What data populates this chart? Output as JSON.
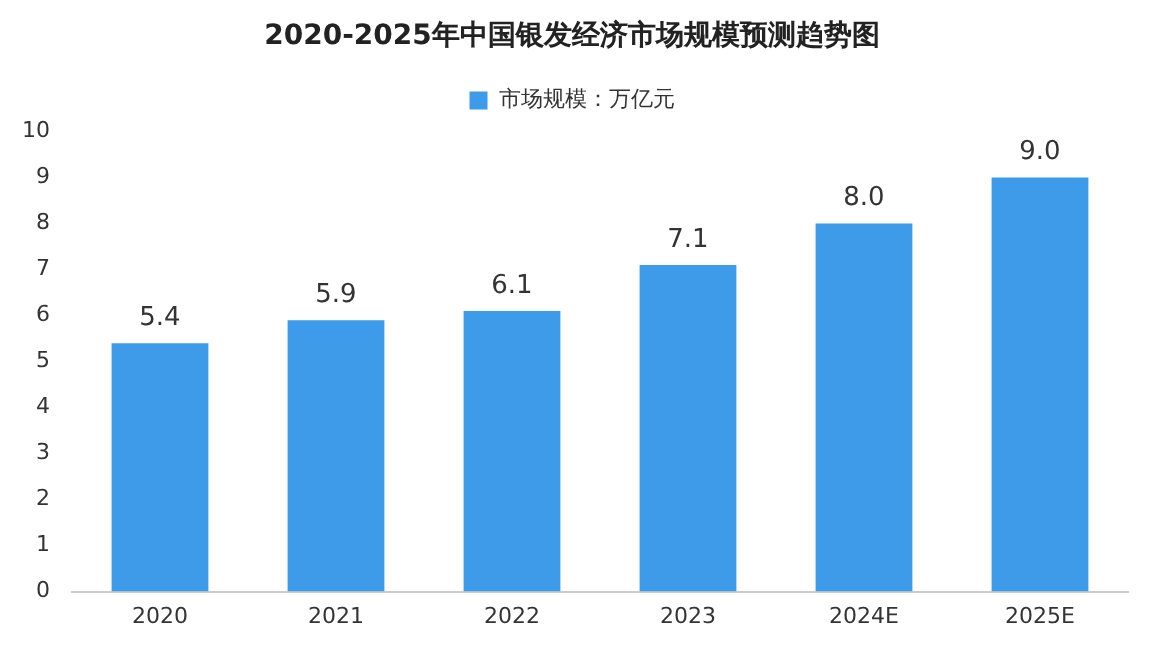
{
  "chart_data": {
    "type": "bar",
    "title": "2020-2025年中国银发经济市场规模预测趋势图",
    "categories": [
      "2020",
      "2021",
      "2022",
      "2023",
      "2024E",
      "2025E"
    ],
    "series": [
      {
        "name": "市场规模：万亿元",
        "color": "#3d9be9",
        "values": [
          5.4,
          5.9,
          6.1,
          7.1,
          8.0,
          9.0
        ],
        "value_labels": [
          "5.4",
          "5.9",
          "6.1",
          "7.1",
          "8.0",
          "9.0"
        ]
      }
    ],
    "ylim": [
      0,
      10
    ],
    "yticks": [
      0,
      1,
      2,
      3,
      4,
      5,
      6,
      7,
      8,
      9,
      10
    ],
    "grid": false,
    "legend": "top"
  }
}
